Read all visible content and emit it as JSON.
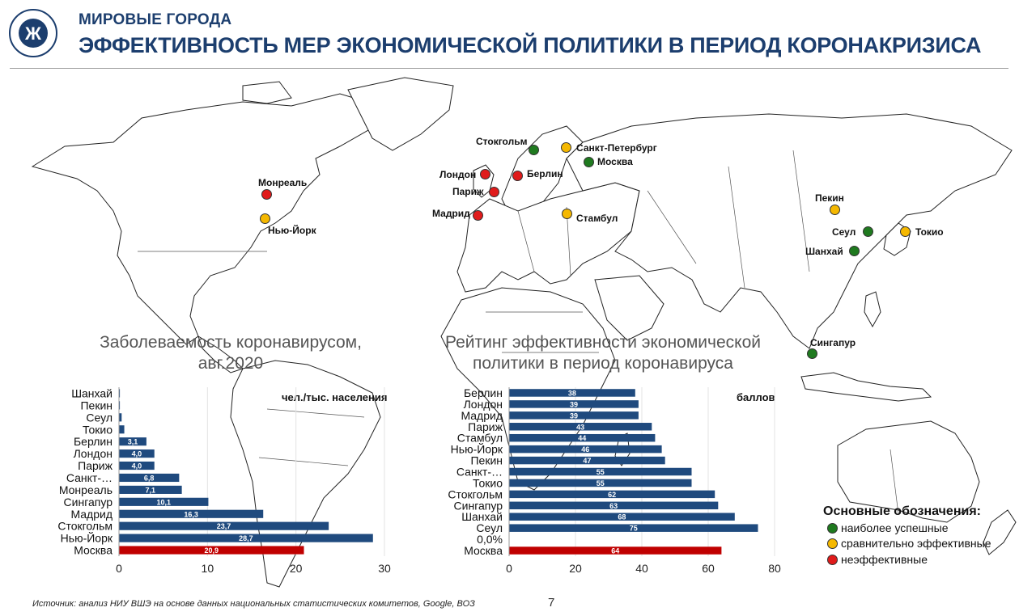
{
  "header": {
    "subtitle": "МИРОВЫЕ ГОРОДА",
    "title": "ЭФФЕКТИВНОСТЬ МЕР ЭКОНОМИЧЕСКОЙ ПОЛИТИКИ В ПЕРИОД КОРОНАКРИЗИСА"
  },
  "colors": {
    "green": "#1f7a1f",
    "yellow": "#f5b800",
    "red": "#e01b1b",
    "bar_blue": "#1f4a7e",
    "bar_red": "#c00000",
    "brand": "#1c3e6e"
  },
  "cities": [
    {
      "name": "Стокгольм",
      "status": "green"
    },
    {
      "name": "Санкт-Петербург",
      "status": "yellow"
    },
    {
      "name": "Москва",
      "status": "green"
    },
    {
      "name": "Лондон",
      "status": "red"
    },
    {
      "name": "Берлин",
      "status": "red"
    },
    {
      "name": "Париж",
      "status": "red"
    },
    {
      "name": "Мадрид",
      "status": "red"
    },
    {
      "name": "Стамбул",
      "status": "yellow"
    },
    {
      "name": "Монреаль",
      "status": "red"
    },
    {
      "name": "Нью-Йорк",
      "status": "yellow"
    },
    {
      "name": "Пекин",
      "status": "yellow"
    },
    {
      "name": "Сеул",
      "status": "green"
    },
    {
      "name": "Токио",
      "status": "yellow"
    },
    {
      "name": "Шанхай",
      "status": "green"
    },
    {
      "name": "Сингапур",
      "status": "green"
    }
  ],
  "chart_data": [
    {
      "type": "bar",
      "orientation": "horizontal",
      "title": "Заболеваемость коронавирусом, авг.2020",
      "unit": "чел./тыс. населения",
      "categories": [
        "Шанхай",
        "Пекин",
        "Сеул",
        "Токио",
        "Берлин",
        "Лондон",
        "Париж",
        "Санкт-…",
        "Монреаль",
        "Сингапур",
        "Мадрид",
        "Стокгольм",
        "Нью-Йорк",
        "Москва"
      ],
      "values": [
        0.1,
        0.1,
        0.3,
        0.6,
        3.1,
        4.0,
        4.0,
        6.8,
        7.1,
        10.1,
        16.3,
        23.7,
        28.7,
        20.9
      ],
      "labels": [
        "",
        "",
        "",
        "",
        "3,1",
        "4,0",
        "4,0",
        "6,8",
        "7,1",
        "10,1",
        "16,3",
        "23,7",
        "28,7",
        "20,9"
      ],
      "highlight": "Москва",
      "xlim": [
        0,
        30
      ],
      "xticks": [
        "0",
        "10",
        "20",
        "30"
      ]
    },
    {
      "type": "bar",
      "orientation": "horizontal",
      "title": "Рейтинг эффективности экономической политики в период коронавируса",
      "unit": "баллов",
      "categories": [
        "Берлин",
        "Лондон",
        "Мадрид",
        "Париж",
        "Стамбул",
        "Нью-Йорк",
        "Пекин",
        "Санкт-…",
        "Токио",
        "Стокгольм",
        "Сингапур",
        "Шанхай",
        "Сеул",
        "0,0%",
        "Москва"
      ],
      "values": [
        38,
        39,
        39,
        43,
        44,
        46,
        47,
        55,
        55,
        62,
        63,
        68,
        75,
        0,
        64
      ],
      "labels": [
        "38",
        "39",
        "39",
        "43",
        "44",
        "46",
        "47",
        "55",
        "55",
        "62",
        "63",
        "68",
        "75",
        "",
        "64"
      ],
      "highlight": "Москва",
      "xlim": [
        0,
        80
      ],
      "xticks": [
        "0",
        "20",
        "40",
        "60",
        "80"
      ]
    }
  ],
  "charts_text": {
    "left_title_1": "Заболеваемость коронавирусом,",
    "left_title_2": "авг.2020",
    "left_unit": "чел./тыс. населения",
    "right_title_1": "Рейтинг эффективности экономической",
    "right_title_2": "политики в период коронавируса",
    "right_unit": "баллов"
  },
  "legend": {
    "title": "Основные обозначения:",
    "items": [
      {
        "label": "наиболее успешные",
        "status": "green"
      },
      {
        "label": "сравнительно эффективные",
        "status": "yellow"
      },
      {
        "label": "неэффективные",
        "status": "red"
      }
    ]
  },
  "footer": {
    "source": "Источник: анализ НИУ ВШЭ на основе данных национальных статистических комитетов, Google, ВОЗ",
    "page": "7"
  }
}
